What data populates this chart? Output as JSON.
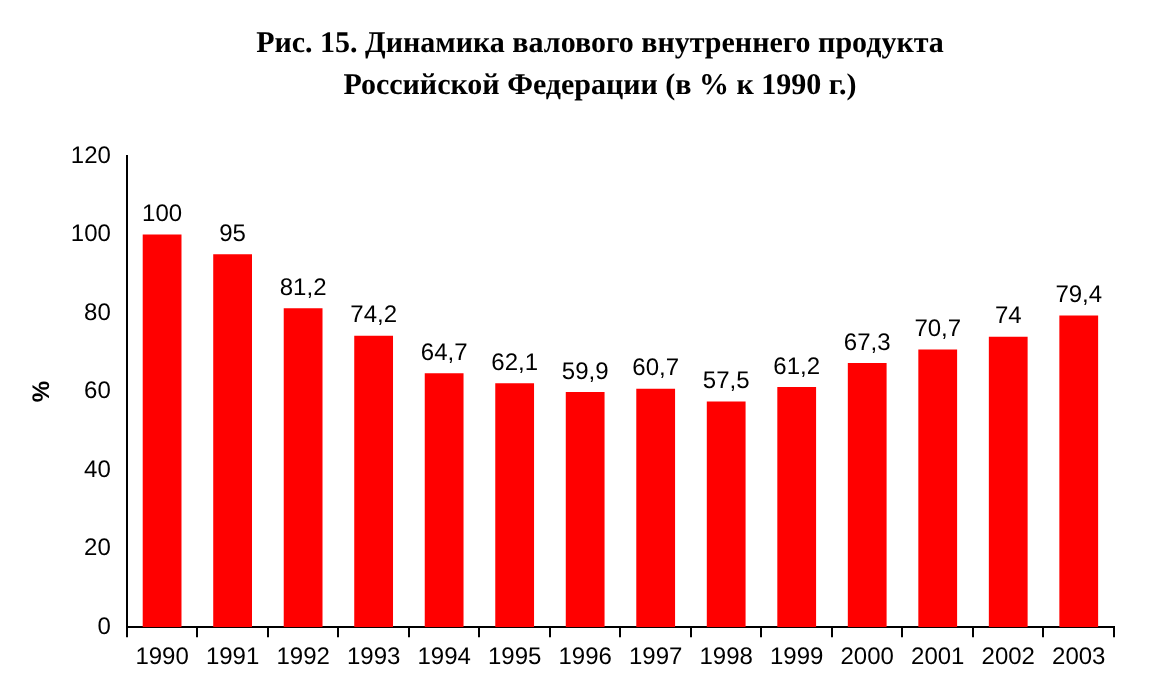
{
  "chart_data": {
    "type": "bar",
    "title": "Рис. 15. Динамика  валового внутреннего продукта Российской Федерации (в % к 1990 г.)",
    "ylabel": "%",
    "categories": [
      "1990",
      "1991",
      "1992",
      "1993",
      "1994",
      "1995",
      "1996",
      "1997",
      "1998",
      "1999",
      "2000",
      "2001",
      "2002",
      "2003"
    ],
    "values": [
      100,
      95,
      81.2,
      74.2,
      64.7,
      62.1,
      59.9,
      60.7,
      57.5,
      61.2,
      67.3,
      70.7,
      74,
      79.4
    ],
    "value_labels": [
      "100",
      "95",
      "81,2",
      "74,2",
      "64,7",
      "62,1",
      "59,9",
      "60,7",
      "57,5",
      "61,2",
      "67,3",
      "70,7",
      "74",
      "79,4"
    ],
    "color": "#ff0000",
    "ylim": [
      0,
      120
    ],
    "yticks": [
      0,
      20,
      40,
      60,
      80,
      100,
      120
    ],
    "grid": false,
    "legend": false
  }
}
